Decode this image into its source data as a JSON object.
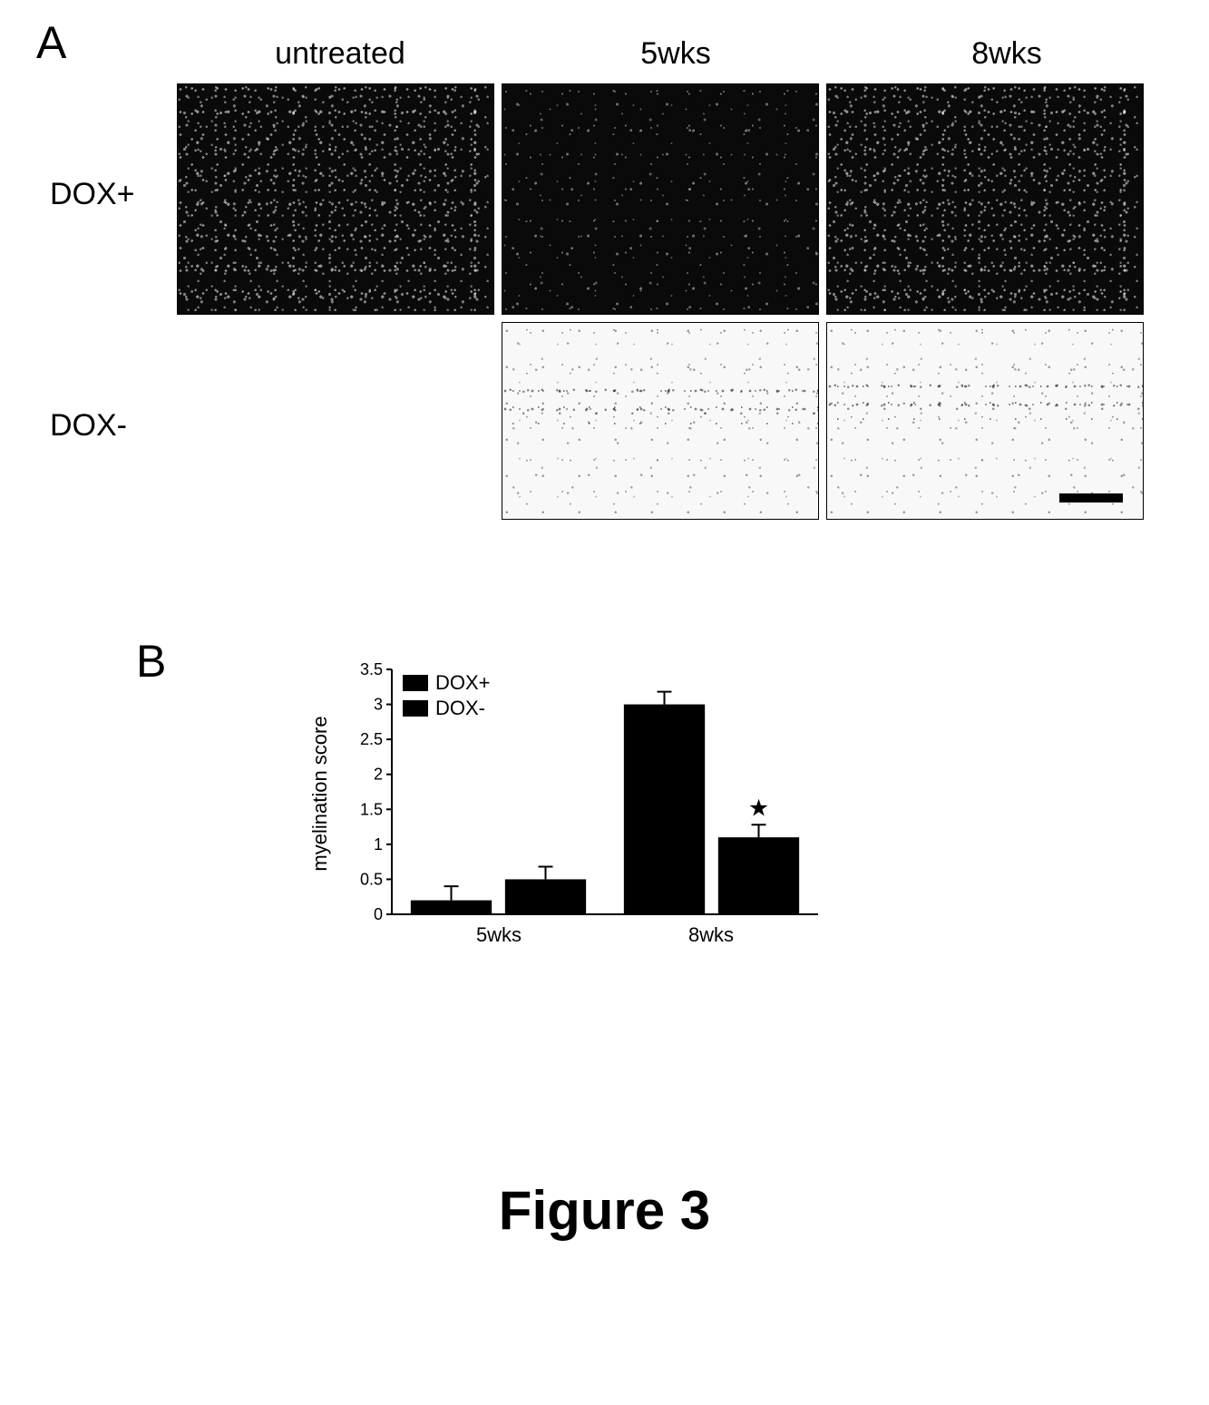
{
  "panelA": {
    "label": "A",
    "col_headers": [
      "untreated",
      "5wks",
      "8wks"
    ],
    "row_labels": [
      "DOX+",
      "DOX-"
    ],
    "images": {
      "DOX+_untreated": {
        "style": "dark-dense"
      },
      "DOX+_5wks": {
        "style": "dark-sparse"
      },
      "DOX+_8wks": {
        "style": "dark-dense"
      },
      "DOX-_5wks": {
        "style": "light"
      },
      "DOX-_8wks": {
        "style": "light"
      }
    },
    "scalebar": true
  },
  "panelB": {
    "label": "B",
    "chart": {
      "type": "bar-grouped",
      "y_label": "myelination score",
      "categories": [
        "5wks",
        "8wks"
      ],
      "series": [
        {
          "name": "DOX+",
          "color": "#000000",
          "values": [
            0.2,
            3.0
          ],
          "errors": [
            0.2,
            0.18
          ]
        },
        {
          "name": "DOX-",
          "color": "#000000",
          "values": [
            0.5,
            1.1
          ],
          "errors": [
            0.18,
            0.18
          ]
        }
      ],
      "significance": [
        {
          "category": "8wks",
          "series": "DOX-",
          "marker": "★"
        }
      ],
      "ylim": [
        0,
        3.5
      ],
      "yticks": [
        0,
        0.5,
        1,
        1.5,
        2,
        2.5,
        3,
        3.5
      ],
      "ytick_labels": [
        "0",
        "0.5",
        "1",
        "1.5",
        "2",
        "2.5",
        "3",
        "3.5"
      ],
      "bar_fill": "#000000",
      "axis_color": "#000000",
      "background_color": "#ffffff",
      "legend_position": "top-left-inside",
      "label_fontsize": 22,
      "tick_fontsize": 18,
      "bar_width": 0.38,
      "group_gap": 0.25,
      "axis_width": 2
    }
  },
  "caption": "Figure 3",
  "colors": {
    "text": "#000000",
    "background": "#ffffff",
    "micro_dark": "#0a0a0a",
    "micro_light": "#f8f8f8"
  }
}
